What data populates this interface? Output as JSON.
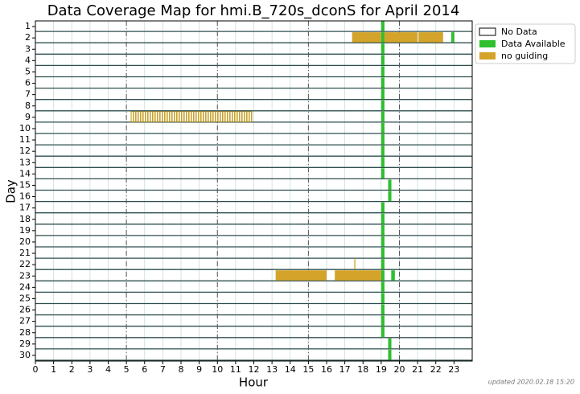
{
  "chart_data": {
    "type": "coverage",
    "title": "Data Coverage Map for hmi.B_720s_dconS for April 2014",
    "xlabel": "Hour",
    "ylabel": "Day",
    "xlim": [
      0,
      24
    ],
    "xticks": [
      0,
      1,
      2,
      3,
      4,
      5,
      6,
      7,
      8,
      9,
      10,
      11,
      12,
      13,
      14,
      15,
      16,
      17,
      18,
      19,
      20,
      21,
      22,
      23
    ],
    "ylim": [
      30.5,
      0.5
    ],
    "yticks": [
      1,
      2,
      3,
      4,
      5,
      6,
      7,
      8,
      9,
      10,
      11,
      12,
      13,
      14,
      15,
      16,
      17,
      18,
      19,
      20,
      21,
      22,
      23,
      24,
      25,
      26,
      27,
      28,
      29,
      30
    ],
    "vlines": [
      5,
      10,
      15,
      20
    ],
    "grid": true,
    "series": [
      {
        "name": "No Data",
        "color": "#ffffff",
        "segments": []
      },
      {
        "name": "Data Available",
        "color": "#2fbf2f",
        "segments": [
          {
            "day": 1,
            "start": 19.0,
            "end": 19.18
          },
          {
            "day": 2,
            "start": 19.0,
            "end": 19.18
          },
          {
            "day": 2,
            "start": 22.85,
            "end": 23.02
          },
          {
            "day": 3,
            "start": 19.0,
            "end": 19.18
          },
          {
            "day": 4,
            "start": 19.0,
            "end": 19.18
          },
          {
            "day": 5,
            "start": 19.0,
            "end": 19.18
          },
          {
            "day": 6,
            "start": 19.0,
            "end": 19.18
          },
          {
            "day": 7,
            "start": 19.0,
            "end": 19.18
          },
          {
            "day": 8,
            "start": 19.0,
            "end": 19.18
          },
          {
            "day": 9,
            "start": 19.0,
            "end": 19.18
          },
          {
            "day": 10,
            "start": 19.0,
            "end": 19.18
          },
          {
            "day": 11,
            "start": 19.0,
            "end": 19.18
          },
          {
            "day": 12,
            "start": 19.0,
            "end": 19.18
          },
          {
            "day": 13,
            "start": 19.0,
            "end": 19.18
          },
          {
            "day": 14,
            "start": 19.0,
            "end": 19.18
          },
          {
            "day": 15,
            "start": 19.38,
            "end": 19.56
          },
          {
            "day": 16,
            "start": 19.38,
            "end": 19.56
          },
          {
            "day": 17,
            "start": 19.0,
            "end": 19.18
          },
          {
            "day": 18,
            "start": 19.0,
            "end": 19.18
          },
          {
            "day": 19,
            "start": 19.0,
            "end": 19.18
          },
          {
            "day": 20,
            "start": 19.0,
            "end": 19.18
          },
          {
            "day": 21,
            "start": 19.0,
            "end": 19.18
          },
          {
            "day": 22,
            "start": 19.0,
            "end": 19.18
          },
          {
            "day": 23,
            "start": 19.0,
            "end": 19.18
          },
          {
            "day": 23,
            "start": 19.55,
            "end": 19.75
          },
          {
            "day": 24,
            "start": 19.0,
            "end": 19.18
          },
          {
            "day": 25,
            "start": 19.0,
            "end": 19.18
          },
          {
            "day": 26,
            "start": 19.0,
            "end": 19.18
          },
          {
            "day": 27,
            "start": 19.0,
            "end": 19.18
          },
          {
            "day": 28,
            "start": 19.0,
            "end": 19.18
          },
          {
            "day": 29,
            "start": 19.38,
            "end": 19.56
          },
          {
            "day": 30,
            "start": 19.38,
            "end": 19.56
          }
        ]
      },
      {
        "name": "no guiding",
        "color": "#d4a42a",
        "segments": [
          {
            "day": 2,
            "start": 17.4,
            "end": 19.0
          },
          {
            "day": 2,
            "start": 19.18,
            "end": 21.0
          },
          {
            "day": 2,
            "start": 21.05,
            "end": 22.4
          },
          {
            "day": 9,
            "start": 5.25,
            "end": 11.9,
            "hatch": true
          },
          {
            "day": 22,
            "start": 17.52,
            "end": 17.58
          },
          {
            "day": 23,
            "start": 13.2,
            "end": 16.0
          },
          {
            "day": 23,
            "start": 16.45,
            "end": 19.0
          }
        ]
      }
    ],
    "footer": "updated 2020.02.18 15:20"
  }
}
